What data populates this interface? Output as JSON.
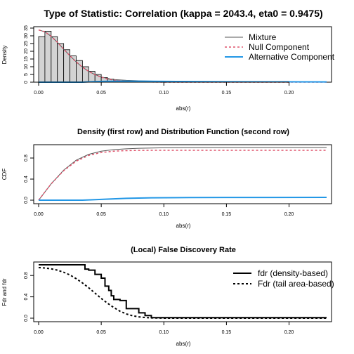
{
  "chart_data": [
    {
      "type": "bar",
      "title": "Type of Statistic: Correlation (kappa = 2043.4, eta0 = 0.9475)",
      "xlabel": "abs(r)",
      "ylabel": "Density",
      "xlim": [
        0,
        0.23
      ],
      "ylim": [
        0,
        35
      ],
      "x_ticks": [
        "0.00",
        "0.05",
        "0.10",
        "0.15",
        "0.20"
      ],
      "y_ticks": [
        "0",
        "5",
        "10",
        "15",
        "20",
        "25",
        "30",
        "35"
      ],
      "histogram": {
        "bin_width": 0.005,
        "bins": [
          0.0,
          0.005,
          0.01,
          0.015,
          0.02,
          0.025,
          0.03,
          0.035,
          0.04,
          0.045,
          0.05,
          0.055,
          0.06,
          0.065,
          0.07
        ],
        "values": [
          29.5,
          33,
          29.5,
          25,
          21,
          17,
          14,
          10,
          7,
          5,
          3,
          2,
          1,
          0.6,
          0.3
        ]
      },
      "series": [
        {
          "name": "Mixture",
          "x": [
            0,
            0.005,
            0.01,
            0.015,
            0.02,
            0.025,
            0.03,
            0.035,
            0.04,
            0.045,
            0.05,
            0.055,
            0.06,
            0.07,
            0.08,
            0.1,
            0.23
          ],
          "y": [
            33.8,
            32.6,
            29.7,
            25.8,
            21.4,
            17.1,
            13.1,
            9.7,
            7.0,
            4.9,
            3.4,
            2.4,
            1.7,
            1.2,
            0.9,
            0.5,
            0.1
          ]
        },
        {
          "name": "Null Component",
          "x": [
            0,
            0.005,
            0.01,
            0.015,
            0.02,
            0.025,
            0.03,
            0.035,
            0.04,
            0.045,
            0.05,
            0.055,
            0.06,
            0.07,
            0.08,
            0.1,
            0.23
          ],
          "y": [
            33.8,
            32.6,
            29.7,
            25.8,
            21.4,
            17.1,
            13.1,
            9.7,
            7.0,
            4.8,
            3.2,
            2.1,
            1.3,
            0.5,
            0.2,
            0.0,
            0.0
          ]
        },
        {
          "name": "Alternative Component",
          "x": [
            0,
            0.035,
            0.04,
            0.045,
            0.055,
            0.07,
            0.09,
            0.11,
            0.15,
            0.2,
            0.23
          ],
          "y": [
            0,
            0,
            0.2,
            0.4,
            0.55,
            0.6,
            0.55,
            0.45,
            0.3,
            0.2,
            0.15
          ]
        }
      ],
      "legend": {
        "placement": "top-right",
        "entries": [
          "Mixture",
          "Null Component",
          "Alternative Component"
        ]
      },
      "colors": {
        "mixture": "#555555",
        "null": "#df536b",
        "alternative": "#2297e6",
        "bars": "#d3d3d3"
      }
    },
    {
      "type": "line",
      "title": "Density (first row) and Distribution Function (second row)",
      "xlabel": "abs(r)",
      "ylabel": "CDF",
      "xlim": [
        0,
        0.23
      ],
      "ylim": [
        0,
        1
      ],
      "x_ticks": [
        "0.00",
        "0.05",
        "0.10",
        "0.15",
        "0.20"
      ],
      "y_ticks": [
        "0.0",
        "0.4",
        "0.8"
      ],
      "series": [
        {
          "name": "Mixture",
          "x": [
            0,
            0.01,
            0.02,
            0.03,
            0.04,
            0.05,
            0.06,
            0.07,
            0.08,
            0.1,
            0.15,
            0.23
          ],
          "y": [
            0,
            0.31,
            0.57,
            0.76,
            0.87,
            0.93,
            0.96,
            0.975,
            0.985,
            0.995,
            1.0,
            1.0
          ]
        },
        {
          "name": "Null Component",
          "x": [
            0,
            0.01,
            0.02,
            0.03,
            0.04,
            0.05,
            0.06,
            0.07,
            0.08,
            0.1,
            0.15,
            0.23
          ],
          "y": [
            0,
            0.31,
            0.56,
            0.74,
            0.85,
            0.905,
            0.93,
            0.94,
            0.945,
            0.9475,
            0.9475,
            0.9475
          ]
        },
        {
          "name": "Alternative Component",
          "x": [
            0,
            0.035,
            0.04,
            0.05,
            0.06,
            0.07,
            0.09,
            0.12,
            0.15,
            0.23
          ],
          "y": [
            0,
            0,
            0.005,
            0.015,
            0.025,
            0.035,
            0.045,
            0.05,
            0.052,
            0.0525
          ]
        }
      ],
      "colors": {
        "mixture": "#555555",
        "null": "#df536b",
        "alternative": "#2297e6"
      }
    },
    {
      "type": "line",
      "title": "(Local) False Discovery Rate",
      "xlabel": "abs(r)",
      "ylabel": "Fdr and fdr",
      "xlim": [
        0,
        0.23
      ],
      "ylim": [
        0,
        1
      ],
      "x_ticks": [
        "0.00",
        "0.05",
        "0.10",
        "0.15",
        "0.20"
      ],
      "y_ticks": [
        "0.0",
        "0.4",
        "0.8"
      ],
      "series": [
        {
          "name": "fdr (density-based)",
          "x": [
            0,
            0.037,
            0.037,
            0.04,
            0.04,
            0.045,
            0.045,
            0.05,
            0.05,
            0.053,
            0.053,
            0.056,
            0.056,
            0.058,
            0.058,
            0.06,
            0.06,
            0.065,
            0.065,
            0.07,
            0.07,
            0.08,
            0.08,
            0.085,
            0.085,
            0.09,
            0.09,
            0.23
          ],
          "y": [
            1,
            1,
            0.92,
            0.92,
            0.9,
            0.9,
            0.82,
            0.82,
            0.75,
            0.75,
            0.6,
            0.6,
            0.52,
            0.52,
            0.42,
            0.42,
            0.35,
            0.35,
            0.33,
            0.33,
            0.18,
            0.18,
            0.1,
            0.1,
            0.05,
            0.05,
            0.01,
            0.01
          ]
        },
        {
          "name": "Fdr (tail area-based)",
          "x": [
            0,
            0.005,
            0.01,
            0.015,
            0.02,
            0.025,
            0.03,
            0.035,
            0.04,
            0.045,
            0.05,
            0.055,
            0.06,
            0.065,
            0.07,
            0.075,
            0.08,
            0.085,
            0.09,
            0.1,
            0.23
          ],
          "y": [
            0.9475,
            0.94,
            0.925,
            0.9,
            0.86,
            0.81,
            0.74,
            0.66,
            0.57,
            0.47,
            0.37,
            0.28,
            0.2,
            0.13,
            0.08,
            0.045,
            0.025,
            0.012,
            0.005,
            0.0,
            0.0
          ]
        }
      ],
      "legend": {
        "placement": "top-right",
        "entries": [
          "fdr (density-based)",
          "Fdr (tail area-based)"
        ]
      },
      "colors": {
        "fdr": "#000000",
        "Fdr": "#000000"
      }
    }
  ]
}
